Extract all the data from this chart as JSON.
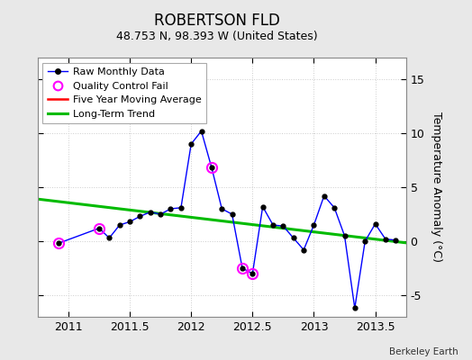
{
  "title": "ROBERTSON FLD",
  "subtitle": "48.753 N, 98.393 W (United States)",
  "credit": "Berkeley Earth",
  "ylabel": "Temperature Anomaly (°C)",
  "xlim": [
    2010.75,
    2013.75
  ],
  "ylim": [
    -7,
    17
  ],
  "yticks": [
    -5,
    0,
    5,
    10,
    15
  ],
  "xticks": [
    2011,
    2011.5,
    2012,
    2012.5,
    2013,
    2013.5
  ],
  "background_color": "#e8e8e8",
  "plot_bg_color": "#ffffff",
  "raw_x": [
    2010.917,
    2011.25,
    2011.333,
    2011.417,
    2011.5,
    2011.583,
    2011.667,
    2011.75,
    2011.833,
    2011.917,
    2012.0,
    2012.083,
    2012.167,
    2012.25,
    2012.333,
    2012.417,
    2012.5,
    2012.583,
    2012.667,
    2012.75,
    2012.833,
    2012.917,
    2013.0,
    2013.083,
    2013.167,
    2013.25,
    2013.333,
    2013.417,
    2013.5,
    2013.583,
    2013.667
  ],
  "raw_y": [
    -0.2,
    1.2,
    0.3,
    1.5,
    1.8,
    2.3,
    2.7,
    2.5,
    3.0,
    3.1,
    9.0,
    10.2,
    6.8,
    3.0,
    2.5,
    -2.5,
    -3.0,
    3.2,
    1.5,
    1.4,
    0.3,
    -0.8,
    1.5,
    4.2,
    3.1,
    0.5,
    -6.2,
    0.0,
    1.6,
    0.2,
    0.1
  ],
  "qc_fail_x": [
    2010.917,
    2011.25,
    2012.167,
    2012.417,
    2012.5
  ],
  "qc_fail_y": [
    -0.2,
    1.2,
    6.8,
    -2.5,
    -3.0
  ],
  "trend_x": [
    2010.75,
    2013.75
  ],
  "trend_y": [
    3.9,
    -0.15
  ],
  "raw_line_color": "#0000ff",
  "raw_marker_color": "#000000",
  "qc_color": "#ff00ff",
  "trend_color": "#00bb00",
  "mavg_color": "#ff0000",
  "grid_color": "#cccccc",
  "title_fontsize": 12,
  "subtitle_fontsize": 9,
  "tick_fontsize": 9,
  "ylabel_fontsize": 9
}
